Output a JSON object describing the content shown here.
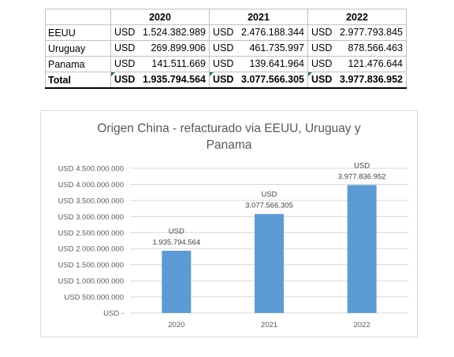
{
  "table": {
    "headers": [
      "",
      "2020",
      "2021",
      "2022"
    ],
    "currency": "USD",
    "rows": [
      {
        "label": "EEUU",
        "values": [
          "1.524.382.989",
          "2.476.188.344",
          "2.977.793.845"
        ]
      },
      {
        "label": "Uruguay",
        "values": [
          "269.899.906",
          "461.735.997",
          "878.566.463"
        ]
      },
      {
        "label": "Panama",
        "values": [
          "141.511.669",
          "139.641.964",
          "121.476.644"
        ]
      },
      {
        "label": "Total",
        "values": [
          "1.935.794.564",
          "3.077.566.305",
          "3.977.836.952"
        ]
      }
    ]
  },
  "chart_data": {
    "type": "bar",
    "title_line1": "Origen China - refacturado via EEUU, Uruguay y",
    "title_line2": "Panama",
    "categories": [
      "2020",
      "2021",
      "2022"
    ],
    "values": [
      1935794564,
      3077566305,
      3977836952
    ],
    "data_labels": [
      [
        "USD",
        "1.935.794.564"
      ],
      [
        "USD",
        "3.077.566.305"
      ],
      [
        "USD",
        "3.977.836.952"
      ]
    ],
    "ylim": [
      0,
      4500000000
    ],
    "y_tick_labels": [
      "USD -",
      "USD 500.000.000",
      "USD 1.000.000.000",
      "USD 1.500.000.000",
      "USD 2.000.000.000",
      "USD 2.500.000.000",
      "USD 3.000.000.000",
      "USD 3.500.000.000",
      "USD 4.000.000.000",
      "USD 4.500.000.000"
    ],
    "grid": true,
    "bar_color": "#5b9bd5",
    "grid_color": "#d9d9d9"
  }
}
